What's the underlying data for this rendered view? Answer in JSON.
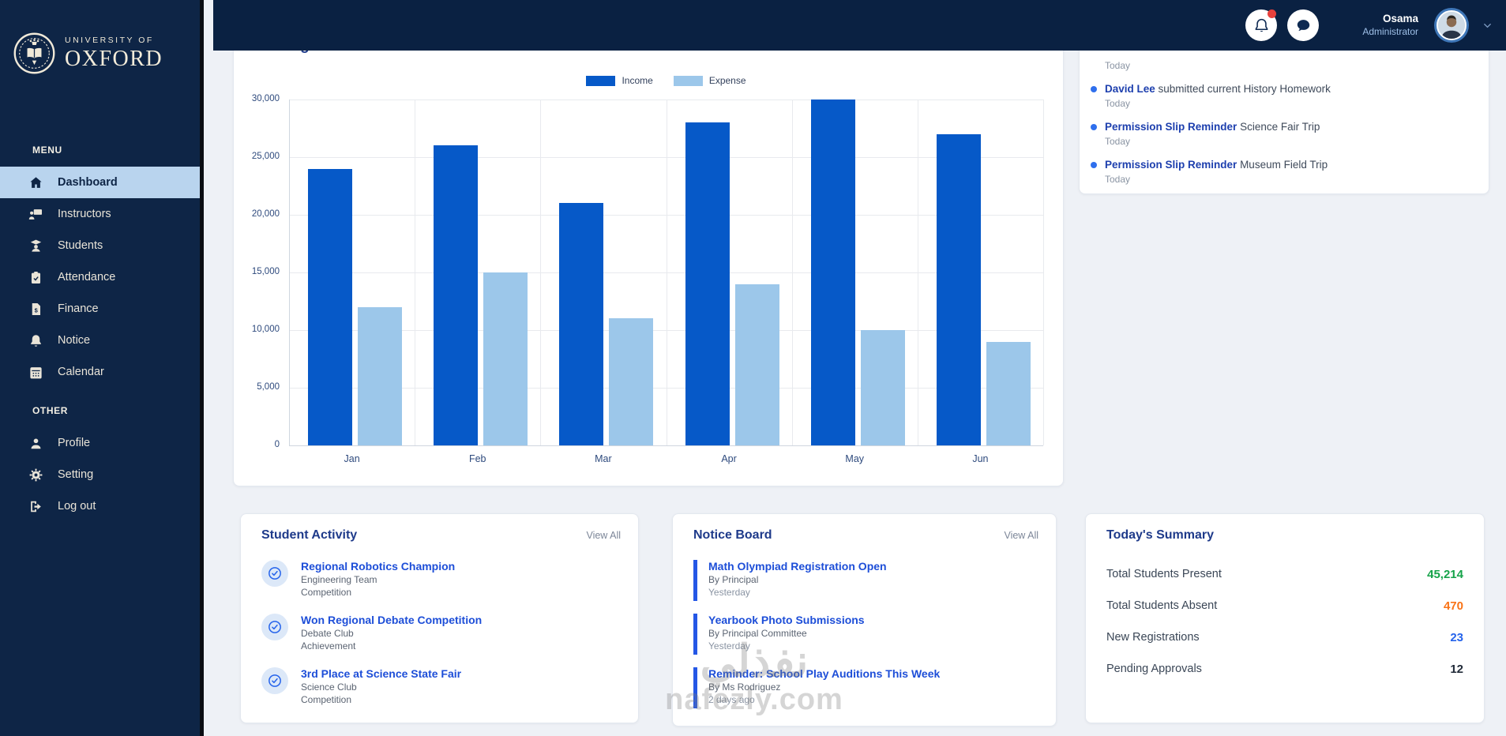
{
  "brand": {
    "line1": "UNIVERSITY OF",
    "line2": "OXFORD"
  },
  "sidebar": {
    "menu_label": "MENU",
    "other_label": "OTHER",
    "menu_items": [
      {
        "label": "Dashboard",
        "icon": "home-icon",
        "active": true
      },
      {
        "label": "Instructors",
        "icon": "instructors-icon",
        "active": false
      },
      {
        "label": "Students",
        "icon": "students-icon",
        "active": false
      },
      {
        "label": "Attendance",
        "icon": "attendance-icon",
        "active": false
      },
      {
        "label": "Finance",
        "icon": "finance-icon",
        "active": false
      },
      {
        "label": "Notice",
        "icon": "notice-icon",
        "active": false
      },
      {
        "label": "Calendar",
        "icon": "calendar-icon",
        "active": false
      }
    ],
    "other_items": [
      {
        "label": "Profile",
        "icon": "profile-icon",
        "active": false
      },
      {
        "label": "Setting",
        "icon": "settings-icon",
        "active": false
      },
      {
        "label": "Log out",
        "icon": "logout-icon",
        "active": false
      }
    ]
  },
  "header": {
    "user_name": "Osama",
    "user_role": "Administrator",
    "has_notification_badge": true
  },
  "earnings": {
    "title": "Earnings"
  },
  "chart_data": {
    "type": "bar",
    "categories": [
      "Jan",
      "Feb",
      "Mar",
      "Apr",
      "May",
      "Jun"
    ],
    "series": [
      {
        "name": "Income",
        "values": [
          24000,
          26000,
          21000,
          28000,
          30000,
          27000
        ]
      },
      {
        "name": "Expense",
        "values": [
          12000,
          15000,
          11000,
          14000,
          10000,
          9000
        ]
      }
    ],
    "title": "Earnings",
    "xlabel": "",
    "ylabel": "",
    "ylim": [
      0,
      30000
    ],
    "yticks": [
      0,
      5000,
      10000,
      15000,
      20000,
      25000,
      30000
    ],
    "grid": true,
    "legend_position": "top",
    "colors": {
      "Income": "#0659c8",
      "Expense": "#9cc7ea"
    }
  },
  "notifications": {
    "items": [
      {
        "strong": "",
        "rest": "",
        "time": "Today"
      },
      {
        "strong": "David Lee",
        "rest": " submitted current History Homework",
        "time": "Today"
      },
      {
        "strong": "Permission Slip Reminder",
        "rest": " Science Fair Trip",
        "time": "Today"
      },
      {
        "strong": "Permission Slip Reminder",
        "rest": " Museum Field Trip",
        "time": "Today"
      }
    ]
  },
  "student_activity": {
    "title": "Student Activity",
    "view_all": "View All",
    "items": [
      {
        "title": "Regional Robotics Champion",
        "line1": "Engineering Team",
        "line2": "Competition"
      },
      {
        "title": "Won Regional Debate Competition",
        "line1": "Debate Club",
        "line2": "Achievement"
      },
      {
        "title": "3rd Place at Science State Fair",
        "line1": "Science Club",
        "line2": "Competition"
      }
    ]
  },
  "notice_board": {
    "title": "Notice Board",
    "view_all": "View All",
    "items": [
      {
        "title": "Math Olympiad Registration Open",
        "by": "By Principal",
        "when": "Yesterday"
      },
      {
        "title": "Yearbook Photo Submissions",
        "by": "By Principal Committee",
        "when": "Yesterday"
      },
      {
        "title": "Reminder: School Play Auditions This Week",
        "by": "By Ms Rodriguez",
        "when": "2 days ago"
      }
    ]
  },
  "summary": {
    "title": "Today's Summary",
    "rows": [
      {
        "label": "Total Students Present",
        "value": "45,214",
        "color": "#16a34a"
      },
      {
        "label": "Total Students Absent",
        "value": "470",
        "color": "#f97316"
      },
      {
        "label": "New Registrations",
        "value": "23",
        "color": "#2563eb"
      },
      {
        "label": "Pending Approvals",
        "value": "12",
        "color": "#1f2937"
      }
    ]
  },
  "watermark": {
    "arabic": "نفذلي",
    "latin": "nafezly.com"
  },
  "colors": {
    "sidebar_bg": "#0e2546",
    "topbar_bg": "#0a2142",
    "active_item_bg": "#b9d4ee",
    "accent_blue": "#2563eb",
    "notification_badge": "#e8413c"
  }
}
